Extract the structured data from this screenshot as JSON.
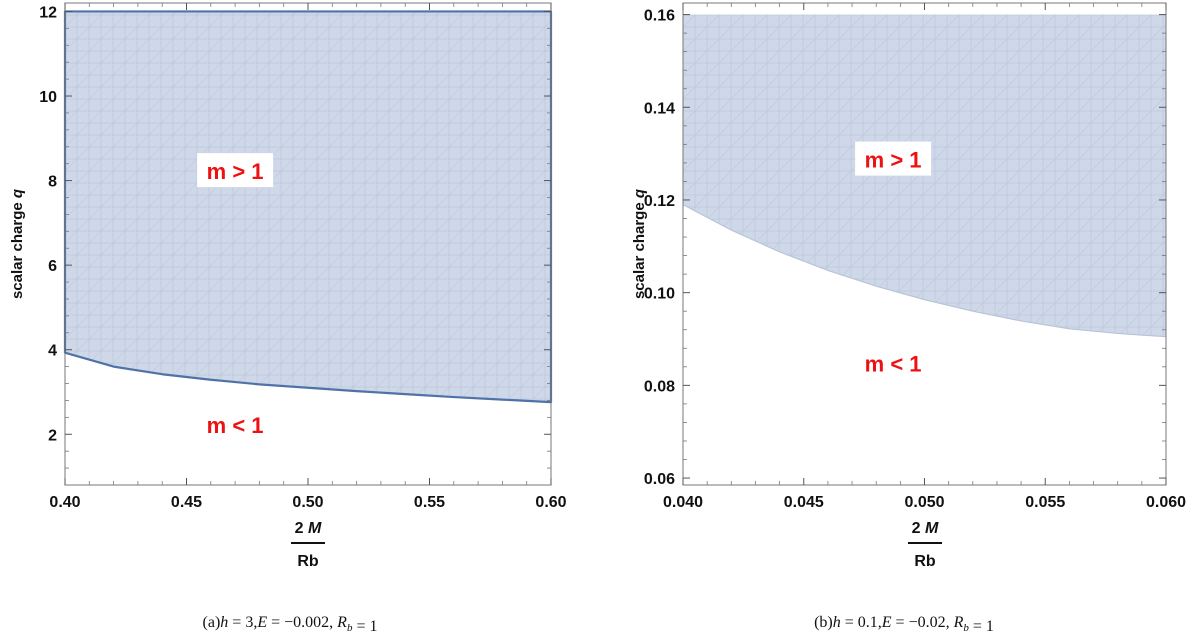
{
  "chart_data": [
    {
      "type": "area",
      "panel_label": "(a)",
      "caption": {
        "parts": [
          {
            "text": "(a)",
            "italic": false
          },
          {
            "text": "h",
            "italic": true
          },
          {
            "text": " = 3,",
            "italic": false
          },
          {
            "text": "E",
            "italic": true
          },
          {
            "text": " = −0.002, ",
            "italic": false
          },
          {
            "text": "R",
            "italic": true
          },
          {
            "text": "b",
            "italic": true,
            "sub": true
          },
          {
            "text": " = 1",
            "italic": false
          }
        ]
      },
      "xlabel": {
        "num_prefix": "2 ",
        "num_var": "M",
        "den": "Rb"
      },
      "ylabel": {
        "prefix": "scalar charge ",
        "var": "q"
      },
      "xlim": [
        0.4,
        0.6
      ],
      "ylim": [
        0.8,
        12.2
      ],
      "xticks": [
        0.4,
        0.45,
        0.5,
        0.55,
        0.6
      ],
      "xtick_labels": [
        "0.40",
        "0.45",
        "0.50",
        "0.55",
        "0.60"
      ],
      "yticks": [
        2,
        4,
        6,
        8,
        10,
        12
      ],
      "ytick_labels": [
        "2",
        "4",
        "6",
        "8",
        "10",
        "12"
      ],
      "region": {
        "y_top": 12,
        "boundary_x": [
          0.4,
          0.42,
          0.44,
          0.46,
          0.48,
          0.5,
          0.52,
          0.54,
          0.56,
          0.58,
          0.6
        ],
        "boundary_y": [
          3.93,
          3.6,
          3.42,
          3.29,
          3.18,
          3.1,
          3.02,
          2.95,
          2.88,
          2.82,
          2.76
        ],
        "outlined": true
      },
      "annotations": [
        {
          "text": "m > 1",
          "x": 0.47,
          "y": 8.2,
          "boxed": true
        },
        {
          "text": "m < 1",
          "x": 0.47,
          "y": 2.2,
          "boxed": false
        }
      ],
      "colors": {
        "fill": "#cfd8e8",
        "outline": "#4f72a8",
        "mesh": "#9fb0c6",
        "text": "#ee1111"
      }
    },
    {
      "type": "area",
      "panel_label": "(b)",
      "caption": {
        "parts": [
          {
            "text": "(b)",
            "italic": false
          },
          {
            "text": "h",
            "italic": true
          },
          {
            "text": " = 0.1,",
            "italic": false
          },
          {
            "text": "E",
            "italic": true
          },
          {
            "text": " = −0.02, ",
            "italic": false
          },
          {
            "text": "R",
            "italic": true
          },
          {
            "text": "b",
            "italic": true,
            "sub": true
          },
          {
            "text": " = 1",
            "italic": false
          }
        ]
      },
      "xlabel": {
        "num_prefix": "2 ",
        "num_var": "M",
        "den": "Rb"
      },
      "ylabel": {
        "prefix": "scalar charge ",
        "var": "q"
      },
      "xlim": [
        0.04,
        0.06
      ],
      "ylim": [
        0.0585,
        0.1625
      ],
      "xticks": [
        0.04,
        0.045,
        0.05,
        0.055,
        0.06
      ],
      "xtick_labels": [
        "0.040",
        "0.045",
        "0.050",
        "0.055",
        "0.060"
      ],
      "yticks": [
        0.06,
        0.08,
        0.1,
        0.12,
        0.14,
        0.16
      ],
      "ytick_labels": [
        "0.06",
        "0.08",
        "0.10",
        "0.12",
        "0.14",
        "0.16"
      ],
      "region": {
        "y_top": 0.16,
        "boundary_x": [
          0.04,
          0.042,
          0.044,
          0.046,
          0.048,
          0.05,
          0.052,
          0.054,
          0.056,
          0.058,
          0.06
        ],
        "boundary_y": [
          0.119,
          0.1135,
          0.1088,
          0.1048,
          0.1014,
          0.0985,
          0.096,
          0.0939,
          0.0922,
          0.0912,
          0.0905
        ],
        "outlined": false
      },
      "annotations": [
        {
          "text": "m > 1",
          "x": 0.0487,
          "y": 0.1285,
          "boxed": true
        },
        {
          "text": "m < 1",
          "x": 0.0487,
          "y": 0.0845,
          "boxed": false
        }
      ],
      "colors": {
        "fill": "#cfd8e8",
        "outline": "#4f72a8",
        "mesh": "#9fb0c6",
        "text": "#ee1111"
      }
    }
  ]
}
